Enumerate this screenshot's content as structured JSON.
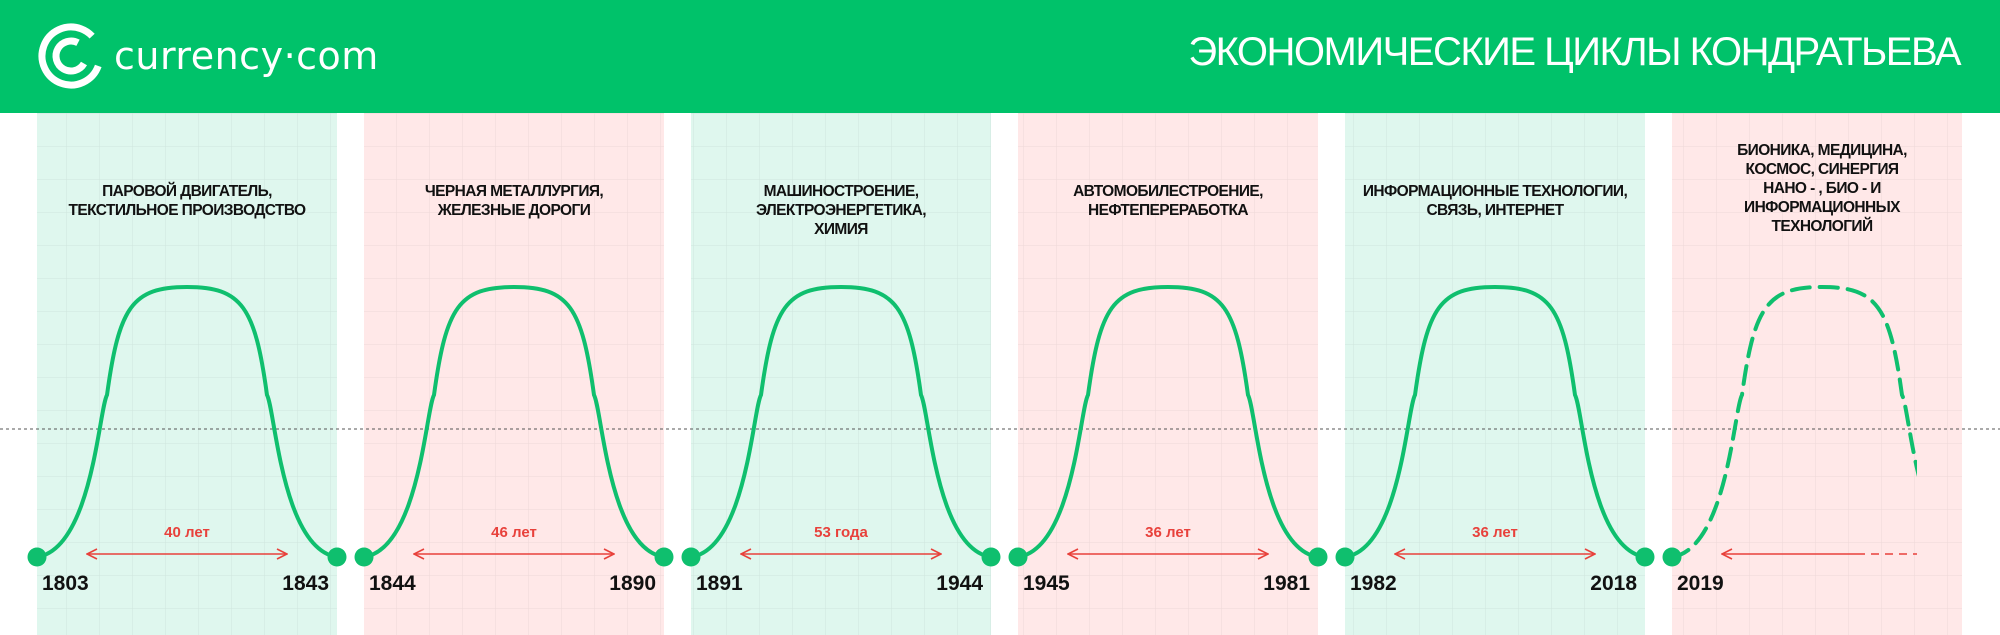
{
  "header": {
    "logo_text": "currency·com",
    "logo_icon": "currency-com-logo-icon",
    "title": "ЭКОНОМИЧЕСКИЕ ЦИКЛЫ КОНДРАТЬЕВА"
  },
  "colors": {
    "brand_green": "#00c26a",
    "curve_green": "#0fbf6e",
    "band_green": "#dff7ee",
    "band_red": "#ffe8e8",
    "arrow_red": "#e8413b"
  },
  "cycles": [
    {
      "label": [
        "ПАРОВОЙ ДВИГАТЕЛЬ,",
        "ТЕКСТИЛЬНОЕ ПРОИЗВОДСТВО"
      ],
      "start": "1803",
      "end": "1843",
      "duration": "40 лет",
      "color": "green",
      "status": "past"
    },
    {
      "label": [
        "ЧЕРНАЯ МЕТАЛЛУРГИЯ,",
        "ЖЕЛЕЗНЫЕ ДОРОГИ"
      ],
      "start": "1844",
      "end": "1890",
      "duration": "46 лет",
      "color": "red",
      "status": "past"
    },
    {
      "label": [
        "МАШИНОСТРОЕНИЕ,",
        "ЭЛЕКТРОЭНЕРГЕТИКА,",
        "ХИМИЯ"
      ],
      "start": "1891",
      "end": "1944",
      "duration": "53 года",
      "color": "green",
      "status": "past"
    },
    {
      "label": [
        "АВТОМОБИЛЕСТРОЕНИЕ,",
        "НЕФТЕПЕРЕРАБОТКА"
      ],
      "start": "1945",
      "end": "1981",
      "duration": "36 лет",
      "color": "red",
      "status": "past"
    },
    {
      "label": [
        "ИНФОРМАЦИОННЫЕ ТЕХНОЛОГИИ,",
        "СВЯЗЬ, ИНТЕРНЕТ"
      ],
      "start": "1982",
      "end": "2018",
      "duration": "36 лет",
      "color": "green",
      "status": "past"
    },
    {
      "label": [
        "БИОНИКА, МЕДИЦИНА,",
        "КОСМОС, СИНЕРГИЯ",
        "НАНО - , БИО - И",
        "ИНФОРМАЦИОННЫХ",
        "ТЕХНОЛОГИЙ"
      ],
      "start": "2019",
      "end": "",
      "duration": "",
      "color": "red",
      "status": "current"
    }
  ]
}
